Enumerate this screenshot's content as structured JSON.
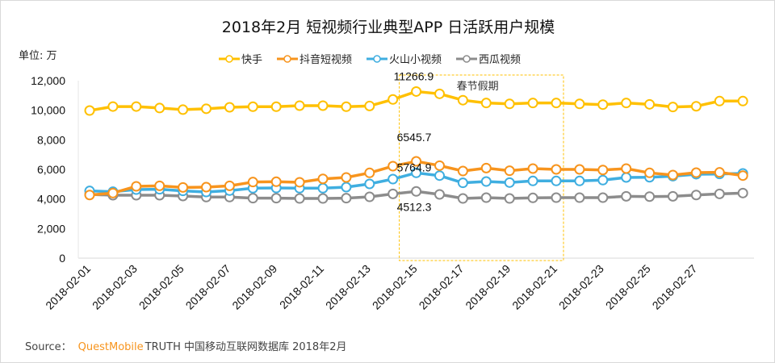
{
  "chart_data": {
    "type": "line",
    "title": "2018年2月 短视频行业典型APP 日活跃用户规模",
    "unit_label": "单位: 万",
    "ylim": [
      0,
      12000
    ],
    "yticks": [
      "0",
      "2,000",
      "4,000",
      "6,000",
      "8,000",
      "10,000",
      "12,000"
    ],
    "ytick_values": [
      0,
      2000,
      4000,
      6000,
      8000,
      10000,
      12000
    ],
    "xtick_labels": [
      "2018-02-01",
      "2018-02-03",
      "2018-02-05",
      "2018-02-07",
      "2018-02-09",
      "2018-02-11",
      "2018-02-13",
      "2018-02-15",
      "2018-02-17",
      "2018-02-19",
      "2018-02-21",
      "2018-02-23",
      "2018-02-25",
      "2018-02-27"
    ],
    "point_count": 29,
    "legend_position": "top",
    "grid": false,
    "series": [
      {
        "name": "快手",
        "color": "#FFC000",
        "values": [
          9980,
          10250,
          10250,
          10150,
          10040,
          10100,
          10200,
          10240,
          10240,
          10310,
          10310,
          10240,
          10290,
          10730,
          11266.9,
          11110,
          10680,
          10490,
          10430,
          10490,
          10490,
          10430,
          10380,
          10490,
          10400,
          10220,
          10270,
          10620,
          10620
        ]
      },
      {
        "name": "抖音短视频",
        "color": "#F7941D",
        "values": [
          4270,
          4400,
          4855,
          4890,
          4780,
          4800,
          4890,
          5145,
          5165,
          5130,
          5360,
          5455,
          5765,
          6220,
          6545.7,
          6255,
          5890,
          6090,
          5910,
          6055,
          6000,
          6000,
          5960,
          6055,
          5765,
          5620,
          5780,
          5800,
          5580
        ]
      },
      {
        "name": "火山小视频",
        "color": "#3FAEE0",
        "values": [
          4545,
          4490,
          4635,
          4655,
          4545,
          4470,
          4565,
          4730,
          4745,
          4730,
          4730,
          4800,
          5020,
          5345,
          5764.9,
          5580,
          5090,
          5180,
          5110,
          5220,
          5220,
          5220,
          5275,
          5455,
          5470,
          5545,
          5675,
          5690,
          5730
        ]
      },
      {
        "name": "西瓜视频",
        "color": "#8C8C8C",
        "values": [
          4310,
          4255,
          4255,
          4255,
          4200,
          4130,
          4130,
          4055,
          4055,
          4035,
          4035,
          4055,
          4145,
          4345,
          4512.3,
          4310,
          4035,
          4090,
          4035,
          4075,
          4090,
          4090,
          4090,
          4180,
          4160,
          4180,
          4270,
          4345,
          4400
        ]
      }
    ],
    "data_labels": [
      "11266.9",
      "6545.7",
      "5764.9",
      "4512.3"
    ],
    "annotation": {
      "text": "春节假期",
      "highlight_color": "#FFC000",
      "from_index": 14,
      "to_index": 20
    }
  },
  "footer": {
    "source_label": "Source：",
    "brand": "QuestMobile",
    "text": "TRUTH 中国移动互联网数据库 2018年2月"
  }
}
